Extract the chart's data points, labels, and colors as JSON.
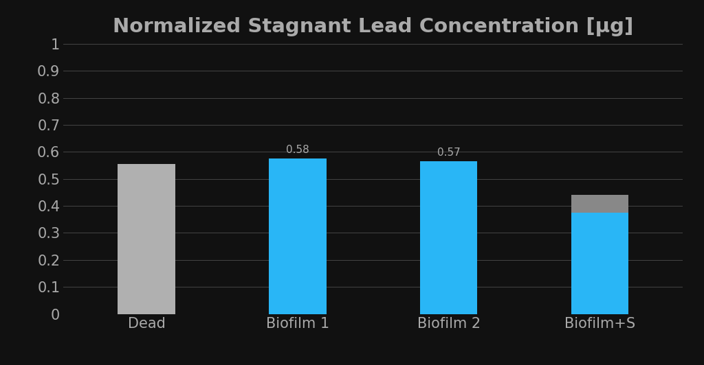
{
  "title": "Normalized Stagnant Lead Concentration [µg]",
  "categories": [
    "Dead",
    "Biofilm 1",
    "Biofilm 2",
    "Biofilm+S"
  ],
  "bar_values": [
    0.555,
    0.575,
    0.565,
    0.375
  ],
  "bar_colors": [
    "#b0b0b0",
    "#29b6f6",
    "#29b6f6",
    "#29b6f6"
  ],
  "cap_values": [
    0.0,
    0.0,
    0.0,
    0.065
  ],
  "cap_colors": [
    "#b0b0b0",
    "#b0b0b0",
    "#b0b0b0",
    "#888888"
  ],
  "ylim": [
    0,
    1.0
  ],
  "yticks": [
    0,
    0.1,
    0.2,
    0.3,
    0.4,
    0.5,
    0.6,
    0.7,
    0.8,
    0.9,
    1.0
  ],
  "ytick_labels": [
    "0",
    "0.1",
    "0.2",
    "0.3",
    "0.4",
    "0.5",
    "0.6",
    "0.7",
    "0.8",
    "0.9",
    "1"
  ],
  "background_color": "#111111",
  "axes_bg_color": "#111111",
  "grid_color": "#e0e0e0",
  "grid_alpha": 0.25,
  "text_color": "#aaaaaa",
  "title_fontsize": 21,
  "tick_fontsize": 15,
  "label_fontsize": 11,
  "bar_width": 0.38,
  "label_values": [
    null,
    0.575,
    0.565,
    null
  ],
  "label_texts": [
    null,
    "0.58",
    "0.57",
    null
  ]
}
